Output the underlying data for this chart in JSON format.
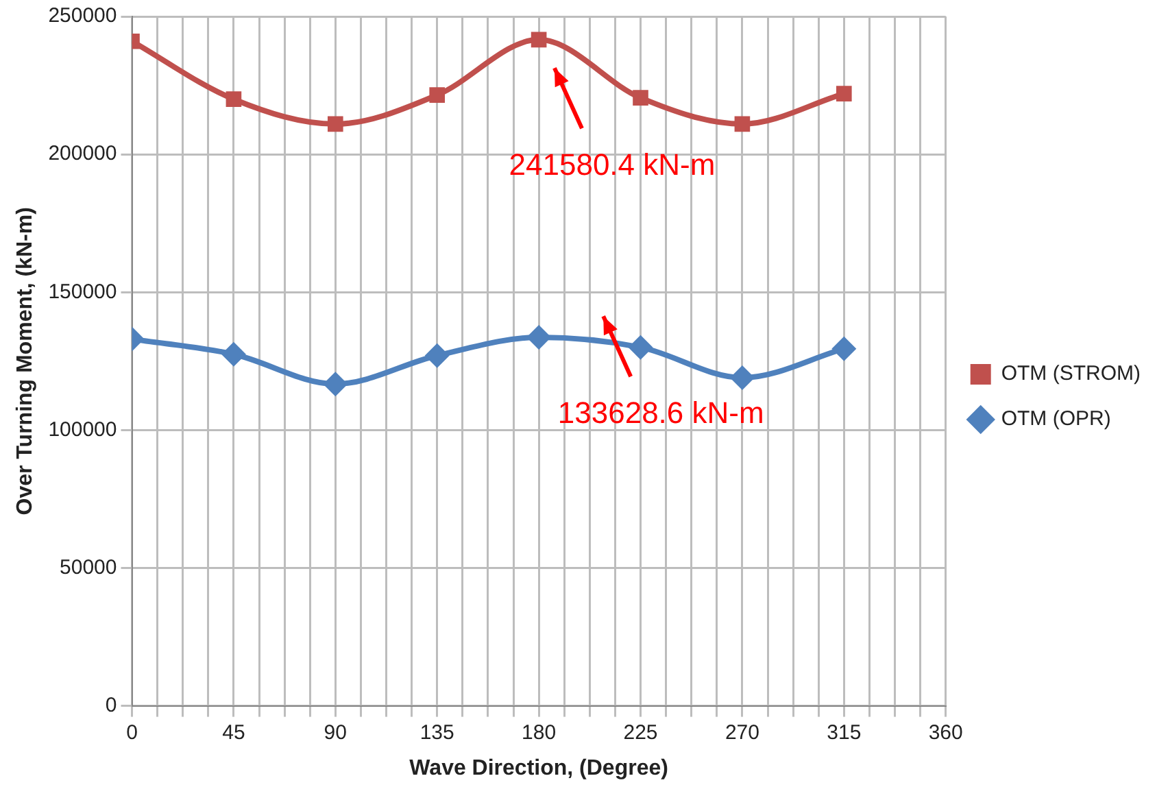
{
  "chart_data": {
    "type": "line",
    "xlabel": "Wave Direction, (Degree)",
    "ylabel": "Over Turning Moment, (kN-m)",
    "x": [
      0,
      45,
      90,
      135,
      180,
      225,
      270,
      315
    ],
    "series": [
      {
        "name": "OTM (STROM)",
        "color": "#c0504d",
        "marker": "square",
        "values": [
          241000,
          220000,
          211000,
          221500,
          241580.4,
          220500,
          211000,
          222000
        ]
      },
      {
        "name": "OTM (OPR)",
        "color": "#4f81bd",
        "marker": "diamond",
        "values": [
          133000,
          127500,
          116700,
          127000,
          133628.6,
          130000,
          119000,
          129500
        ]
      }
    ],
    "xlim": [
      0,
      360
    ],
    "xticks": [
      0,
      {
        "value": 11.25,
        "label": null
      },
      {
        "value": 22.5,
        "label": null
      },
      {
        "value": 33.75,
        "label": null
      },
      45,
      {
        "value": 56.25,
        "label": null
      },
      {
        "value": 67.5,
        "label": null
      },
      {
        "value": 78.75,
        "label": null
      },
      90,
      {
        "value": 101.25,
        "label": null
      },
      {
        "value": 112.5,
        "label": null
      },
      {
        "value": 123.75,
        "label": null
      },
      135,
      {
        "value": 146.25,
        "label": null
      },
      {
        "value": 157.5,
        "label": null
      },
      {
        "value": 168.75,
        "label": null
      },
      180,
      {
        "value": 191.25,
        "label": null
      },
      {
        "value": 202.5,
        "label": null
      },
      {
        "value": 213.75,
        "label": null
      },
      225,
      {
        "value": 236.25,
        "label": null
      },
      {
        "value": 247.5,
        "label": null
      },
      {
        "value": 258.75,
        "label": null
      },
      270,
      {
        "value": 281.25,
        "label": null
      },
      {
        "value": 292.5,
        "label": null
      },
      {
        "value": 303.75,
        "label": null
      },
      315,
      {
        "value": 326.25,
        "label": null
      },
      {
        "value": 337.5,
        "label": null
      },
      {
        "value": 348.75,
        "label": null
      },
      360
    ],
    "ylim": [
      0,
      250000
    ],
    "yticks": [
      0,
      50000,
      100000,
      150000,
      200000,
      250000
    ],
    "grid": true,
    "legend": "right",
    "line_style": "solid",
    "annotations": [
      "241580.4 kN-m",
      "133628.6 kN-m"
    ]
  }
}
